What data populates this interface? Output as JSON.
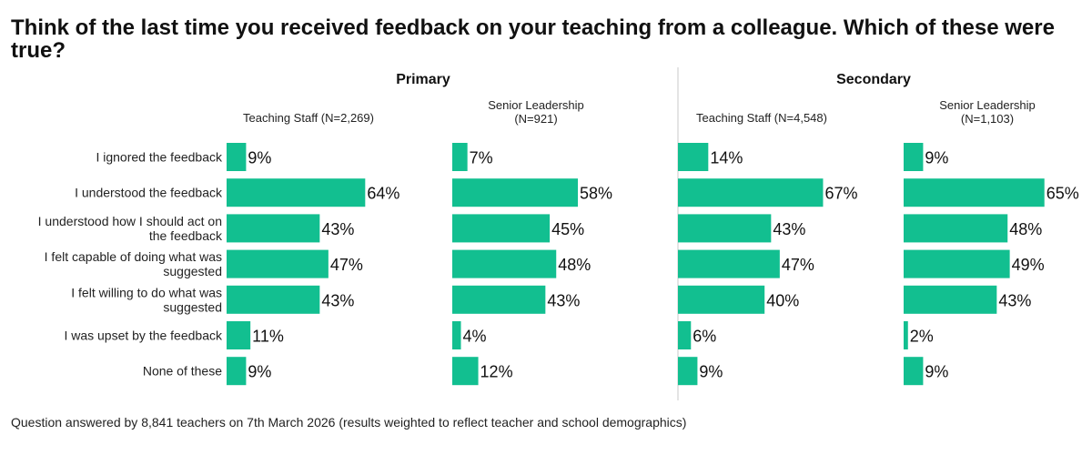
{
  "title": "Think of the last time you received feedback on your teaching from a colleague. Which of these were true?",
  "footnote": "Question answered by 8,841 teachers on 7th March 2026 (results weighted to reflect teacher and school demographics)",
  "colors": {
    "bar": "#12bf90",
    "divider": "#c8c8c8",
    "text": "#1a1a1a"
  },
  "chart_data": {
    "type": "bar",
    "orientation": "horizontal",
    "unit": "%",
    "categories": [
      "I ignored the feedback",
      "I understood the feedback",
      "I understood how I should act on the feedback",
      "I felt capable of doing what was suggested",
      "I felt willing to do what was suggested",
      "I was upset by the feedback",
      "None of these"
    ],
    "category_lines": [
      [
        "I ignored the feedback"
      ],
      [
        "I understood the feedback"
      ],
      [
        "I understood how I should act on",
        "the feedback"
      ],
      [
        "I felt capable of doing what was",
        "suggested"
      ],
      [
        "I felt willing to do what was",
        "suggested"
      ],
      [
        "I was upset by the feedback"
      ],
      [
        "None of these"
      ]
    ],
    "groups": [
      {
        "name": "Primary",
        "panels": [
          {
            "title_lines": [
              "Teaching Staff (N=2,269)"
            ],
            "values": [
              9,
              64,
              43,
              47,
              43,
              11,
              9
            ]
          },
          {
            "title_lines": [
              "Senior Leadership",
              "(N=921)"
            ],
            "values": [
              7,
              58,
              45,
              48,
              43,
              4,
              12
            ]
          }
        ]
      },
      {
        "name": "Secondary",
        "panels": [
          {
            "title_lines": [
              "Teaching Staff (N=4,548)"
            ],
            "values": [
              14,
              67,
              43,
              47,
              40,
              6,
              9
            ]
          },
          {
            "title_lines": [
              "Senior Leadership",
              "(N=1,103)"
            ],
            "values": [
              9,
              65,
              48,
              49,
              43,
              2,
              9
            ]
          }
        ]
      }
    ],
    "xlim": [
      0,
      100
    ],
    "grid": false,
    "legend": "none"
  }
}
